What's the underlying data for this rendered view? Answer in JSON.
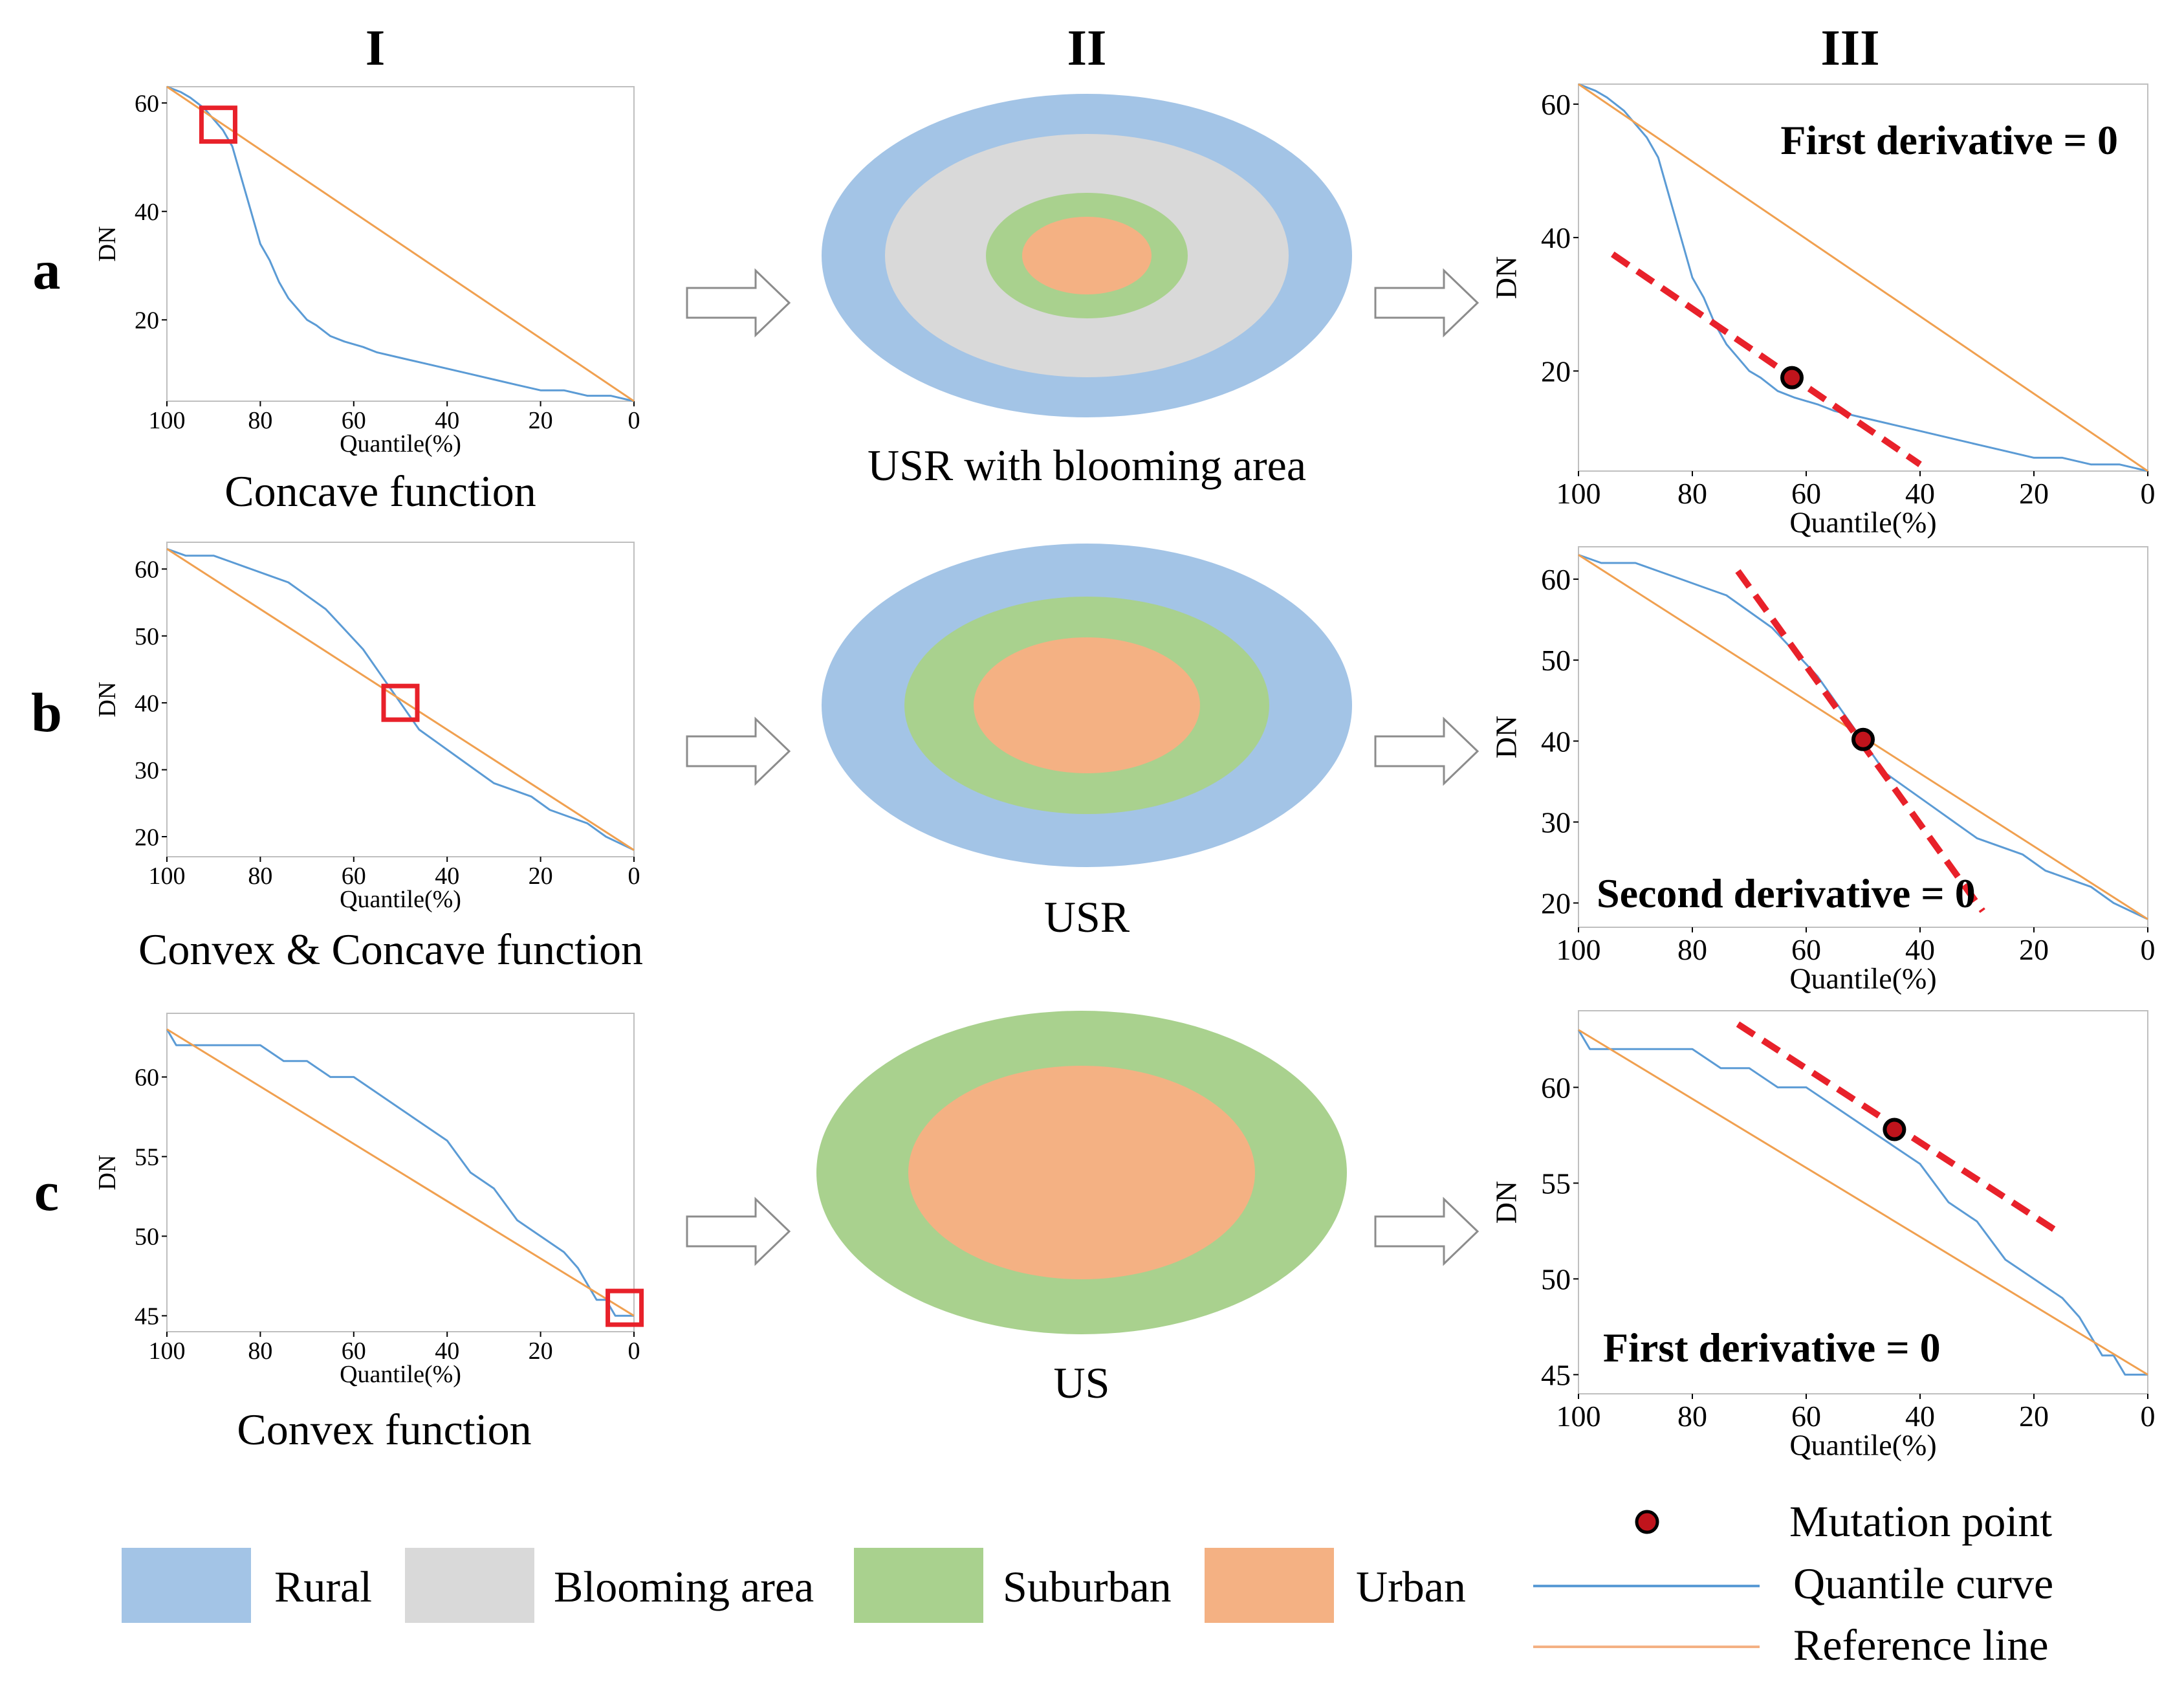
{
  "columns": {
    "col1": "I",
    "col2": "II",
    "col3": "III"
  },
  "rows": [
    {
      "id": "a",
      "row_label": "a",
      "caption": "Concave function",
      "diagram_label": "USR with blooming area",
      "annotation": "First derivative = 0"
    },
    {
      "id": "b",
      "row_label": "b",
      "caption": "Convex & Concave function",
      "diagram_label": "USR",
      "annotation": "Second derivative = 0"
    },
    {
      "id": "c",
      "row_label": "c",
      "caption": "Convex function",
      "diagram_label": "US",
      "annotation": "First derivative = 0"
    }
  ],
  "axis_labels": {
    "x": "Quantile(%)",
    "y": "DN"
  },
  "legend": {
    "zones": [
      {
        "label": "Rural",
        "color": "#a3c4e6"
      },
      {
        "label": "Blooming area",
        "color": "#d9d9d9"
      },
      {
        "label": "Suburban",
        "color": "#a9d18e"
      },
      {
        "label": "Urban",
        "color": "#f4b183"
      }
    ],
    "markers": [
      {
        "label": "Mutation point",
        "kind": "point"
      },
      {
        "label": "Quantile curve",
        "kind": "line",
        "color": "#5b9bd5"
      },
      {
        "label": "Reference line",
        "kind": "line",
        "color": "#f4b183"
      }
    ]
  },
  "colors": {
    "quantile": "#5b9bd5",
    "reference": "#f0a050",
    "highlight": "#e8212a",
    "tangent": "#e8212a",
    "mutation_fill": "#c0141c",
    "rural": "#a3c4e6",
    "blooming": "#d9d9d9",
    "suburban": "#a9d18e",
    "urban": "#f4b183",
    "arrow": "#8c8c8c"
  },
  "chart_data": [
    {
      "id": "a1",
      "row": "a",
      "type": "line",
      "xlabel": "Quantile(%)",
      "ylabel": "DN",
      "xlim": [
        100,
        0
      ],
      "ylim": [
        5,
        63
      ],
      "xticks": [
        100,
        80,
        60,
        40,
        20,
        0
      ],
      "yticks": [
        20,
        40,
        60
      ],
      "series": [
        {
          "name": "Quantile curve",
          "x": [
            100,
            97,
            95,
            92,
            90,
            88,
            86,
            84,
            82,
            80,
            78,
            76,
            74,
            72,
            70,
            68,
            65,
            62,
            58,
            55,
            50,
            45,
            40,
            35,
            30,
            25,
            20,
            15,
            10,
            5,
            0
          ],
          "y": [
            63,
            62,
            61,
            59,
            57,
            55,
            52,
            46,
            40,
            34,
            31,
            27,
            24,
            22,
            20,
            19,
            17,
            16,
            15,
            14,
            13,
            12,
            11,
            10,
            9,
            8,
            7,
            7,
            6,
            6,
            5
          ]
        },
        {
          "name": "Reference line",
          "x": [
            100,
            0
          ],
          "y": [
            63,
            5
          ]
        }
      ],
      "highlight": {
        "x": 89,
        "y": 56
      }
    },
    {
      "id": "b1",
      "row": "b",
      "type": "line",
      "xlabel": "Quantile(%)",
      "ylabel": "DN",
      "xlim": [
        100,
        0
      ],
      "ylim": [
        17,
        64
      ],
      "xticks": [
        100,
        80,
        60,
        40,
        20,
        0
      ],
      "yticks": [
        20,
        30,
        40,
        50,
        60
      ],
      "series": [
        {
          "name": "Quantile curve",
          "x": [
            100,
            96,
            90,
            86,
            82,
            78,
            74,
            70,
            66,
            62,
            58,
            54,
            50,
            46,
            42,
            38,
            34,
            30,
            26,
            22,
            18,
            14,
            10,
            6,
            3,
            0
          ],
          "y": [
            63,
            62,
            62,
            61,
            60,
            59,
            58,
            56,
            54,
            51,
            48,
            44,
            40,
            36,
            34,
            32,
            30,
            28,
            27,
            26,
            24,
            23,
            22,
            20,
            19,
            18
          ]
        },
        {
          "name": "Reference line",
          "x": [
            100,
            0
          ],
          "y": [
            63,
            18
          ]
        }
      ],
      "highlight": {
        "x": 50,
        "y": 40
      }
    },
    {
      "id": "c1",
      "row": "c",
      "type": "line",
      "xlabel": "Quantile(%)",
      "ylabel": "DN",
      "xlim": [
        100,
        0
      ],
      "ylim": [
        44,
        64
      ],
      "xticks": [
        100,
        80,
        60,
        40,
        20,
        0
      ],
      "yticks": [
        45,
        50,
        55,
        60
      ],
      "series": [
        {
          "name": "Quantile curve",
          "x": [
            100,
            98,
            95,
            90,
            85,
            80,
            75,
            70,
            65,
            60,
            55,
            50,
            45,
            40,
            35,
            30,
            25,
            20,
            15,
            12,
            10,
            8,
            6,
            4,
            2,
            0
          ],
          "y": [
            63,
            62,
            62,
            62,
            62,
            62,
            61,
            61,
            60,
            60,
            59,
            58,
            57,
            56,
            54,
            53,
            51,
            50,
            49,
            48,
            47,
            46,
            46,
            45,
            45,
            45
          ]
        },
        {
          "name": "Reference line",
          "x": [
            100,
            0
          ],
          "y": [
            63,
            45
          ]
        }
      ],
      "highlight": {
        "x": 2,
        "y": 45.5
      }
    },
    {
      "id": "a3",
      "row": "a",
      "type": "line",
      "xlabel": "Quantile(%)",
      "ylabel": "DN",
      "xlim": [
        100,
        0
      ],
      "ylim": [
        5,
        63
      ],
      "xticks": [
        100,
        80,
        60,
        40,
        20,
        0
      ],
      "yticks": [
        20,
        40,
        60
      ],
      "series": [
        {
          "name": "Quantile curve",
          "x": [
            100,
            97,
            95,
            92,
            90,
            88,
            86,
            84,
            82,
            80,
            78,
            76,
            74,
            72,
            70,
            68,
            65,
            62,
            58,
            55,
            50,
            45,
            40,
            35,
            30,
            25,
            20,
            15,
            10,
            5,
            0
          ],
          "y": [
            63,
            62,
            61,
            59,
            57,
            55,
            52,
            46,
            40,
            34,
            31,
            27,
            24,
            22,
            20,
            19,
            17,
            16,
            15,
            14,
            13,
            12,
            11,
            10,
            9,
            8,
            7,
            7,
            6,
            6,
            5
          ]
        },
        {
          "name": "Reference line",
          "x": [
            100,
            0
          ],
          "y": [
            63,
            5
          ]
        }
      ],
      "mutation_point": {
        "x": 62.5,
        "y": 19
      },
      "tangent": {
        "x": [
          94,
          40
        ],
        "y": [
          37.5,
          6
        ]
      }
    },
    {
      "id": "b3",
      "row": "b",
      "type": "line",
      "xlabel": "Quantile(%)",
      "ylabel": "DN",
      "xlim": [
        100,
        0
      ],
      "ylim": [
        17,
        64
      ],
      "xticks": [
        100,
        80,
        60,
        40,
        20,
        0
      ],
      "yticks": [
        20,
        30,
        40,
        50,
        60
      ],
      "series": [
        {
          "name": "Quantile curve",
          "x": [
            100,
            96,
            90,
            86,
            82,
            78,
            74,
            70,
            66,
            62,
            58,
            54,
            50,
            46,
            42,
            38,
            34,
            30,
            26,
            22,
            18,
            14,
            10,
            6,
            3,
            0
          ],
          "y": [
            63,
            62,
            62,
            61,
            60,
            59,
            58,
            56,
            54,
            51,
            48,
            44,
            40,
            36,
            34,
            32,
            30,
            28,
            27,
            26,
            24,
            23,
            22,
            20,
            19,
            18
          ]
        },
        {
          "name": "Reference line",
          "x": [
            100,
            0
          ],
          "y": [
            63,
            18
          ]
        }
      ],
      "mutation_point": {
        "x": 50,
        "y": 40.2
      },
      "tangent": {
        "x": [
          72,
          29
        ],
        "y": [
          61,
          19
        ]
      }
    },
    {
      "id": "c3",
      "row": "c",
      "type": "line",
      "xlabel": "Quantile(%)",
      "ylabel": "DN",
      "xlim": [
        100,
        0
      ],
      "ylim": [
        44,
        64
      ],
      "xticks": [
        100,
        80,
        60,
        40,
        20,
        0
      ],
      "yticks": [
        45,
        50,
        55,
        60
      ],
      "series": [
        {
          "name": "Quantile curve",
          "x": [
            100,
            98,
            95,
            90,
            85,
            80,
            75,
            70,
            65,
            60,
            55,
            50,
            45,
            40,
            35,
            30,
            25,
            20,
            15,
            12,
            10,
            8,
            6,
            4,
            2,
            0
          ],
          "y": [
            63,
            62,
            62,
            62,
            62,
            62,
            61,
            61,
            60,
            60,
            59,
            58,
            57,
            56,
            54,
            53,
            51,
            50,
            49,
            48,
            47,
            46,
            46,
            45,
            45,
            45
          ]
        },
        {
          "name": "Reference line",
          "x": [
            100,
            0
          ],
          "y": [
            63,
            45
          ]
        }
      ],
      "mutation_point": {
        "x": 44.5,
        "y": 57.8
      },
      "tangent": {
        "x": [
          72,
          16
        ],
        "y": [
          63.3,
          52.5
        ]
      }
    }
  ]
}
